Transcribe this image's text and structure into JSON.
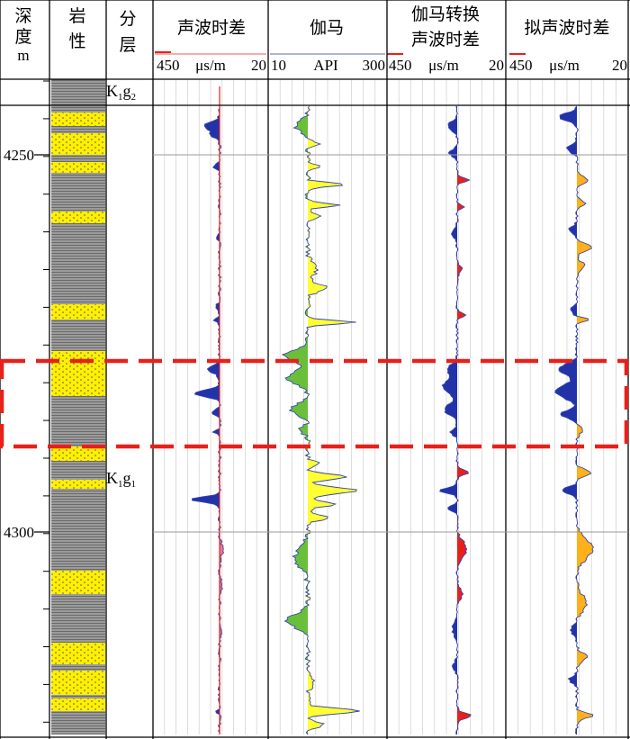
{
  "headers": {
    "depth": [
      "深",
      "度",
      "m"
    ],
    "lith": [
      "岩",
      "性"
    ],
    "layer": [
      "分",
      "层"
    ],
    "sonic": "声波时差",
    "gamma": "伽马",
    "conv": [
      "伽马转换",
      "声波时差"
    ],
    "pseudo": "拟声波时差"
  },
  "scales": {
    "sonic": [
      "450",
      "μs/m",
      "20"
    ],
    "gamma": [
      "10",
      "API",
      "300"
    ],
    "conv": [
      "450",
      "μs/m",
      "20"
    ],
    "pseudo": [
      "450",
      "μs/m",
      "20"
    ]
  },
  "depth_ticks": [
    "4250",
    "4300"
  ],
  "formations": [
    {
      "base": "K",
      "sub": "1",
      "tail": "g",
      "tailsub": "2"
    },
    {
      "base": "K",
      "sub": "1",
      "tail": "g",
      "tailsub": "1"
    }
  ],
  "colors": {
    "sand": "#ffef00",
    "shale": "#555555",
    "gamma_fill": "#6abf3a",
    "gamma_alt": "#ffff33",
    "blue": "#2233aa",
    "red": "#e8201a",
    "orange": "#ffb01a",
    "highlight": "#e8201a"
  }
}
